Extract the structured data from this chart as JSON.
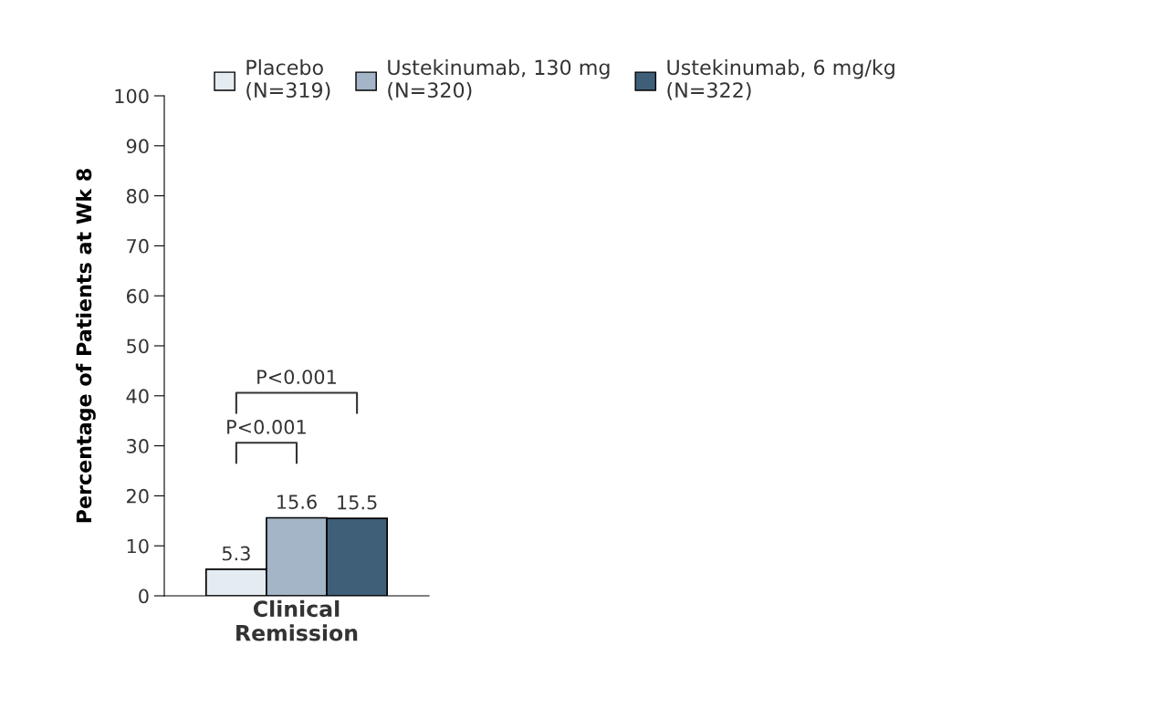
{
  "chart_data": {
    "type": "bar",
    "ylabel": "Percentage of Patients at Wk 8",
    "categories": [
      "Clinical\nRemission"
    ],
    "series": [
      {
        "name": "Placebo\n(N=319)",
        "color": "#e4ecf2",
        "values": [
          5.3
        ]
      },
      {
        "name": "Ustekinumab, 130 mg\n(N=320)",
        "color": "#a3b5c6",
        "values": [
          15.6
        ]
      },
      {
        "name": "Ustekinumab, 6 mg/kg\n(N=322)",
        "color": "#3f5f78",
        "values": [
          15.5
        ]
      }
    ],
    "ylim": [
      0,
      100
    ],
    "yticks": [
      0,
      10,
      20,
      30,
      40,
      50,
      60,
      70,
      80,
      90,
      100
    ],
    "data_labels": true,
    "grid": false,
    "legend": "top",
    "annotations": [
      "P<0.001",
      "P<0.001"
    ]
  }
}
